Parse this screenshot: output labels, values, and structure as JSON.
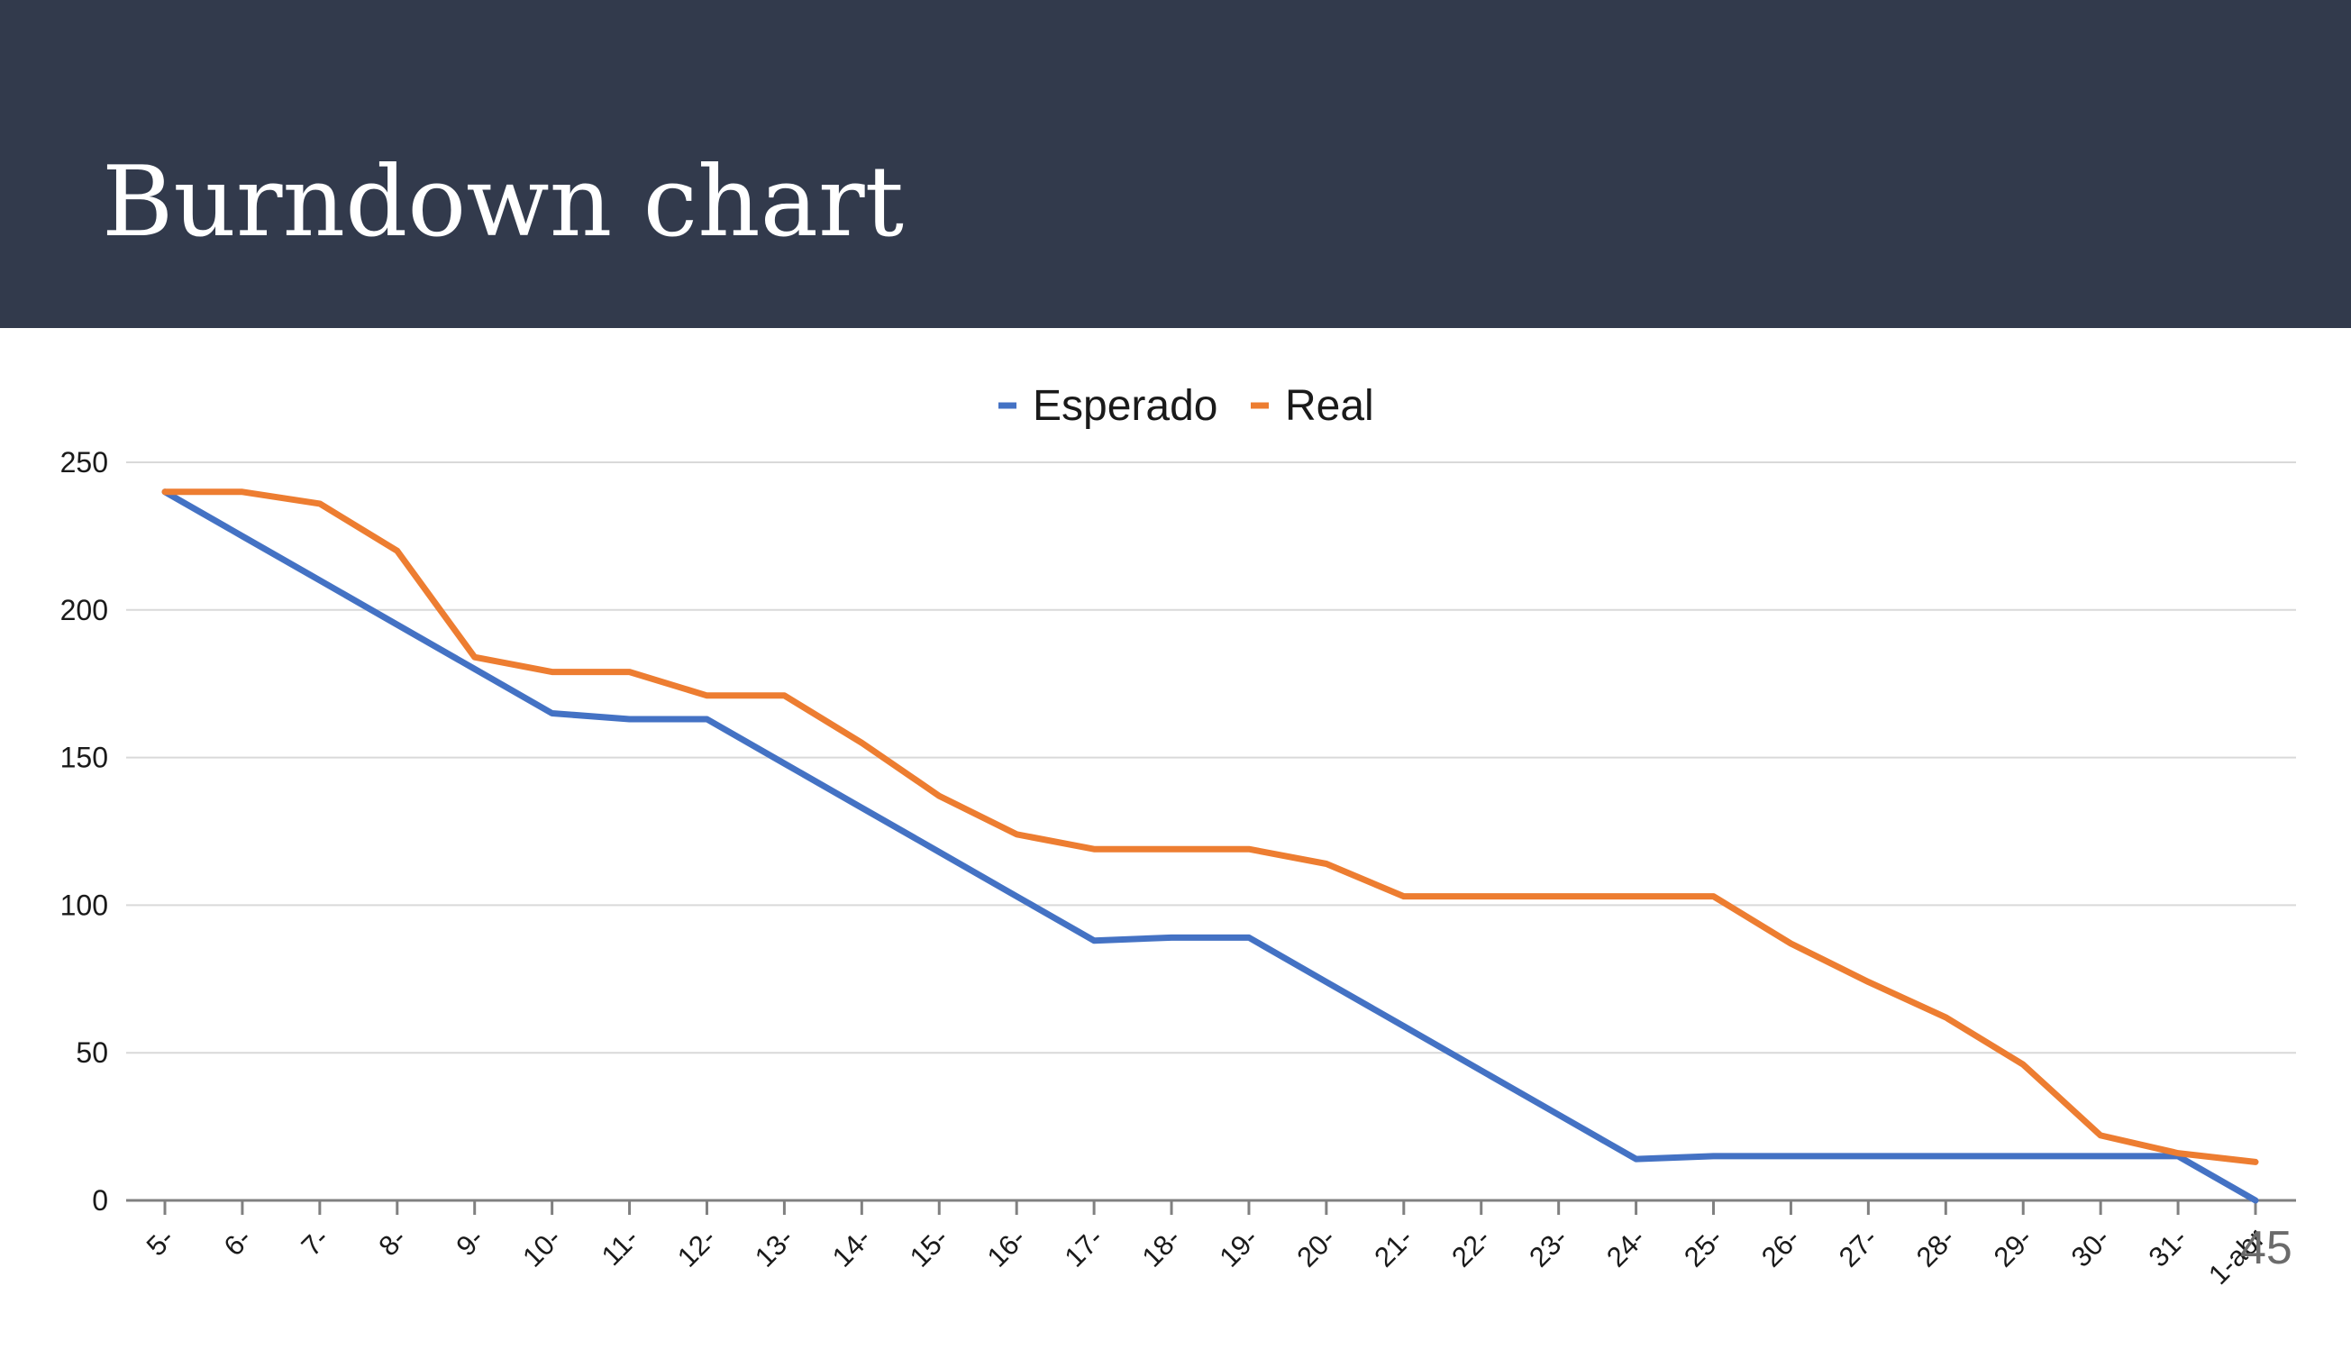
{
  "slide": {
    "title": "Burndown chart",
    "page_number": "45"
  },
  "chart_data": {
    "type": "line",
    "title": "",
    "xlabel": "",
    "ylabel": "",
    "categories": [
      "5-",
      "6-",
      "7-",
      "8-",
      "9-",
      "10-",
      "11-",
      "12-",
      "13-",
      "14-",
      "15-",
      "16-",
      "17-",
      "18-",
      "19-",
      "20-",
      "21-",
      "22-",
      "23-",
      "24-",
      "25-",
      "26-",
      "27-",
      "28-",
      "29-",
      "30-",
      "31-",
      "1-abr"
    ],
    "series": [
      {
        "name": "Esperado",
        "color": "#4472c4",
        "values": [
          240,
          225,
          210,
          195,
          180,
          165,
          163,
          163,
          148,
          133,
          118,
          103,
          88,
          89,
          89,
          74,
          59,
          44,
          29,
          14,
          15,
          15,
          15,
          15,
          15,
          15,
          15,
          0
        ]
      },
      {
        "name": "Real",
        "color": "#ed7d31",
        "values": [
          240,
          240,
          236,
          220,
          184,
          179,
          179,
          171,
          171,
          155,
          137,
          124,
          119,
          119,
          119,
          114,
          103,
          103,
          103,
          103,
          103,
          87,
          74,
          62,
          46,
          22,
          16,
          13
        ]
      }
    ],
    "ylim": [
      0,
      250
    ],
    "yticks": [
      0,
      50,
      100,
      150,
      200,
      250
    ],
    "grid": true,
    "legend": "top-center"
  }
}
